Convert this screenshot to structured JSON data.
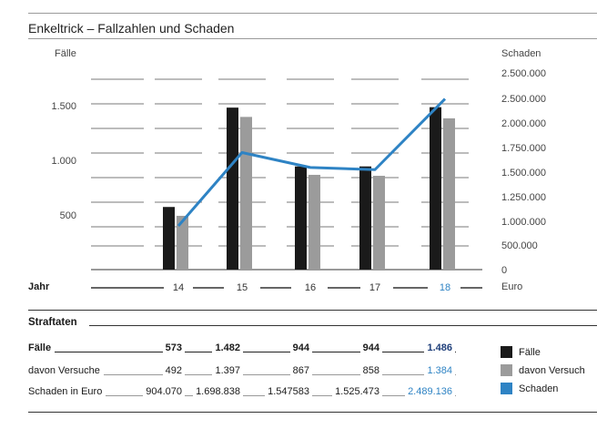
{
  "chart_data": {
    "type": "bar",
    "title": "Enkeltrick – Fallzahlen und Schaden",
    "categories": [
      "14",
      "15",
      "16",
      "17",
      "18"
    ],
    "x_axis_label": "Jahr",
    "y_left_label": "Fälle",
    "y_left_ticks": [
      "500",
      "1.000",
      "1.500"
    ],
    "y_left_range": [
      0,
      1800
    ],
    "y_right_label": "Schaden",
    "y_right_unit": "Euro",
    "y_right_ticks": [
      "0",
      "500.000",
      "1.000.000",
      "1.250.000",
      "1.500.000",
      "1.750.000",
      "2.000.000",
      "2.500.000",
      "2.500.000"
    ],
    "series": [
      {
        "name": "Fälle",
        "type": "bar",
        "color": "#1a1a1a",
        "values": [
          573,
          1482,
          944,
          944,
          1486
        ]
      },
      {
        "name": "davon Versuch",
        "type": "bar",
        "color": "#9b9b9b",
        "values": [
          492,
          1397,
          867,
          858,
          1384
        ]
      },
      {
        "name": "Schaden",
        "type": "line",
        "color": "#2e83c4",
        "values": [
          904070,
          1698838,
          1547583,
          1525473,
          2489136
        ]
      }
    ]
  },
  "table": {
    "heading": "Straftaten",
    "rows": [
      {
        "label": "Fälle",
        "bold": true,
        "values": [
          "573",
          "1.482",
          "944",
          "944",
          "1.486"
        ]
      },
      {
        "label": "davon Versuche",
        "bold": false,
        "values": [
          "492",
          "1.397",
          "867",
          "858",
          "1.384"
        ]
      },
      {
        "label": "Schaden in Euro",
        "bold": false,
        "values": [
          "904.070",
          "1.698.838",
          "1.547583",
          "1.525.473",
          "2.489.136"
        ]
      }
    ],
    "highlight_color": "#2e83c4",
    "bold_highlight_color": "#1f3f7a"
  },
  "legend": [
    {
      "label": "Fälle",
      "color": "#1a1a1a"
    },
    {
      "label": "davon Versuch",
      "color": "#9b9b9b"
    },
    {
      "label": "Schaden",
      "color": "#2e83c4"
    }
  ]
}
